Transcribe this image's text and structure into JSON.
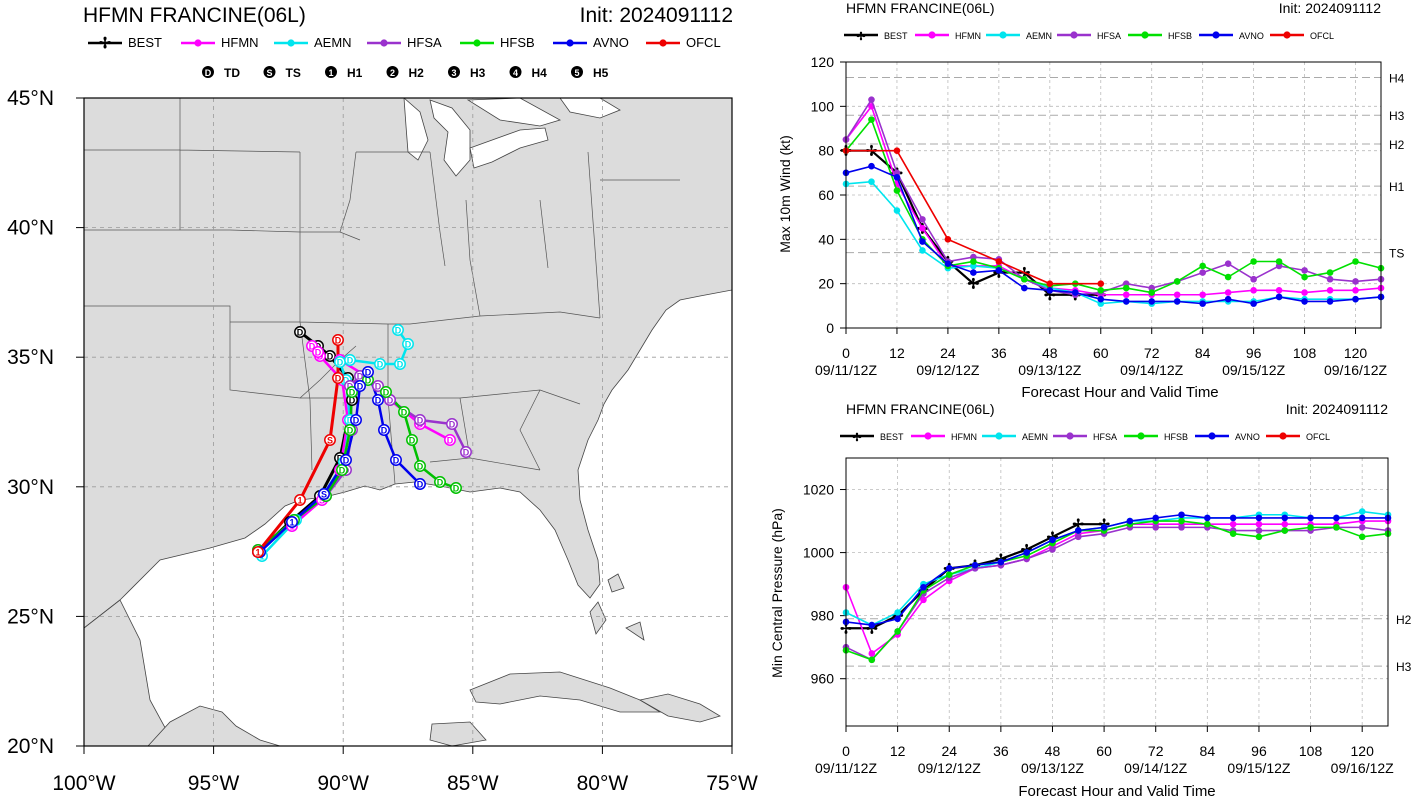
{
  "colors": {
    "BEST": "#000000",
    "HFMN": "#ff00ff",
    "AEMN": "#00e5ee",
    "HFSA": "#9a32cd",
    "HFSB": "#00e000",
    "AVNO": "#0000ee",
    "OFCL": "#ee0000",
    "land": "#dcdcdc",
    "water": "#ffffff",
    "grid": "#9a9a9a"
  },
  "track_panel": {
    "title": "HFMN FRANCINE(06L)",
    "init": "Init: 2024091112",
    "legend_models": [
      "BEST",
      "HFMN",
      "AEMN",
      "HFSA",
      "HFSB",
      "AVNO",
      "OFCL"
    ],
    "intensity_legend": [
      {
        "symbol": "D",
        "label": "TD"
      },
      {
        "symbol": "S",
        "label": "TS"
      },
      {
        "symbol": "1",
        "label": "H1"
      },
      {
        "symbol": "2",
        "label": "H2"
      },
      {
        "symbol": "3",
        "label": "H3"
      },
      {
        "symbol": "4",
        "label": "H4"
      },
      {
        "symbol": "5",
        "label": "H5"
      }
    ],
    "lat_ticks": [
      "45°N",
      "40°N",
      "35°N",
      "30°N",
      "25°N",
      "20°N"
    ],
    "lon_ticks": [
      "100°W",
      "95°W",
      "90°W",
      "85°W",
      "80°W",
      "75°W"
    ],
    "lat_values": [
      45,
      40,
      35,
      30,
      25,
      20
    ],
    "lon_values": [
      -100,
      -95,
      -90,
      -85,
      -80,
      -75
    ],
    "xlim": [
      -100,
      -75
    ],
    "ylim": [
      20,
      45
    ]
  },
  "chart_data": [
    {
      "type": "line",
      "title": "HFMN FRANCINE(06L)",
      "subtitle": "Init: 2024091112",
      "xlabel": "Forecast Hour and Valid Time",
      "ylabel": "Max 10m Wind (kt)",
      "xlim": [
        0,
        126
      ],
      "ylim": [
        0,
        120
      ],
      "x_ticks": [
        0,
        12,
        24,
        36,
        48,
        60,
        72,
        84,
        96,
        108,
        120
      ],
      "y_ticks": [
        0,
        20,
        40,
        60,
        80,
        100,
        120
      ],
      "date_labels": [
        {
          "hour": 0,
          "label": "09/11/12Z"
        },
        {
          "hour": 24,
          "label": "09/12/12Z"
        },
        {
          "hour": 48,
          "label": "09/13/12Z"
        },
        {
          "hour": 72,
          "label": "09/14/12Z"
        },
        {
          "hour": 96,
          "label": "09/15/12Z"
        },
        {
          "hour": 120,
          "label": "09/16/12Z"
        }
      ],
      "ref_lines": [
        {
          "y": 113,
          "label": "H4"
        },
        {
          "y": 96,
          "label": "H3"
        },
        {
          "y": 83,
          "label": "H2"
        },
        {
          "y": 64,
          "label": "H1"
        },
        {
          "y": 34,
          "label": "TS"
        }
      ],
      "series": [
        {
          "name": "BEST",
          "x": [
            0,
            6,
            12,
            18,
            24,
            30,
            36,
            42,
            48,
            54,
            60
          ],
          "y": [
            80,
            80,
            70,
            45,
            30,
            20,
            25,
            25,
            15,
            15,
            15
          ]
        },
        {
          "name": "HFMN",
          "x": [
            0,
            6,
            12,
            18,
            24,
            30,
            36,
            42,
            48,
            54,
            60,
            66,
            72,
            78,
            84,
            90,
            96,
            102,
            108,
            114,
            120,
            126
          ],
          "y": [
            85,
            100,
            65,
            45,
            28,
            28,
            28,
            22,
            18,
            17,
            15,
            15,
            15,
            15,
            15,
            16,
            17,
            17,
            16,
            17,
            17,
            18
          ]
        },
        {
          "name": "AEMN",
          "x": [
            0,
            6,
            12,
            18,
            24,
            30,
            36,
            42,
            48,
            54,
            60,
            66,
            72,
            78,
            84,
            90,
            96,
            102,
            108,
            114,
            120,
            126
          ],
          "y": [
            65,
            66,
            53,
            35,
            27,
            28,
            27,
            22,
            18,
            16,
            11,
            12,
            11,
            12,
            12,
            12,
            12,
            14,
            13,
            13,
            13,
            14
          ]
        },
        {
          "name": "HFSA",
          "x": [
            0,
            6,
            12,
            18,
            24,
            30,
            36,
            42,
            48,
            54,
            60,
            66,
            72,
            78,
            84,
            90,
            96,
            102,
            108,
            114,
            120,
            126
          ],
          "y": [
            85,
            103,
            70,
            49,
            30,
            32,
            31,
            22,
            17,
            15,
            16,
            20,
            18,
            21,
            25,
            29,
            22,
            28,
            26,
            22,
            21,
            22
          ]
        },
        {
          "name": "HFSB",
          "x": [
            0,
            6,
            12,
            18,
            24,
            30,
            36,
            42,
            48,
            54,
            60,
            66,
            72,
            78,
            84,
            90,
            96,
            102,
            108,
            114,
            120,
            126
          ],
          "y": [
            80,
            94,
            62,
            40,
            28,
            30,
            27,
            22,
            19,
            20,
            17,
            18,
            16,
            21,
            28,
            23,
            30,
            30,
            23,
            25,
            30,
            27
          ]
        },
        {
          "name": "AVNO",
          "x": [
            0,
            6,
            12,
            18,
            24,
            30,
            36,
            42,
            48,
            54,
            60,
            66,
            72,
            78,
            84,
            90,
            96,
            102,
            108,
            114,
            120,
            126
          ],
          "y": [
            70,
            73,
            68,
            39,
            29,
            25,
            26,
            18,
            17,
            16,
            13,
            12,
            12,
            12,
            11,
            13,
            11,
            14,
            12,
            12,
            13,
            14
          ]
        },
        {
          "name": "OFCL",
          "x": [
            0,
            12,
            24,
            36,
            48,
            60
          ],
          "y": [
            80,
            80,
            40,
            30,
            20,
            20
          ]
        }
      ]
    },
    {
      "type": "line",
      "title": "HFMN FRANCINE(06L)",
      "subtitle": "Init: 2024091112",
      "xlabel": "Forecast Hour and Valid Time",
      "ylabel": "Min Central Pressure (hPa)",
      "xlim": [
        0,
        126
      ],
      "ylim": [
        945,
        1030
      ],
      "x_ticks": [
        0,
        12,
        24,
        36,
        48,
        60,
        72,
        84,
        96,
        108,
        120
      ],
      "y_ticks": [
        960,
        980,
        1000,
        1020
      ],
      "date_labels": [
        {
          "hour": 0,
          "label": "09/11/12Z"
        },
        {
          "hour": 24,
          "label": "09/12/12Z"
        },
        {
          "hour": 48,
          "label": "09/13/12Z"
        },
        {
          "hour": 72,
          "label": "09/14/12Z"
        },
        {
          "hour": 96,
          "label": "09/15/12Z"
        },
        {
          "hour": 120,
          "label": "09/16/12Z"
        }
      ],
      "ref_lines": [
        {
          "y": 979,
          "label": "H2"
        },
        {
          "y": 964,
          "label": "H3"
        }
      ],
      "series": [
        {
          "name": "BEST",
          "x": [
            0,
            6,
            12,
            18,
            24,
            30,
            36,
            42,
            48,
            54,
            60
          ],
          "y": [
            976,
            976,
            980,
            988,
            995,
            996,
            998,
            1001,
            1005,
            1009,
            1009
          ]
        },
        {
          "name": "HFMN",
          "x": [
            0,
            6,
            12,
            18,
            24,
            30,
            36,
            42,
            48,
            54,
            60,
            66,
            72,
            78,
            84,
            90,
            96,
            102,
            108,
            114,
            120,
            126
          ],
          "y": [
            989,
            968,
            974,
            985,
            991,
            995,
            996,
            998,
            1002,
            1006,
            1007,
            1009,
            1009,
            1009,
            1009,
            1009,
            1009,
            1009,
            1009,
            1009,
            1010,
            1010
          ]
        },
        {
          "name": "AEMN",
          "x": [
            0,
            6,
            12,
            18,
            24,
            30,
            36,
            42,
            48,
            54,
            60,
            66,
            72,
            78,
            84,
            90,
            96,
            102,
            108,
            114,
            120,
            126
          ],
          "y": [
            981,
            977,
            981,
            990,
            993,
            995,
            997,
            1000,
            1004,
            1007,
            1008,
            1010,
            1010,
            1011,
            1011,
            1011,
            1012,
            1012,
            1011,
            1011,
            1013,
            1012
          ]
        },
        {
          "name": "HFSA",
          "x": [
            0,
            6,
            12,
            18,
            24,
            30,
            36,
            42,
            48,
            54,
            60,
            66,
            72,
            78,
            84,
            90,
            96,
            102,
            108,
            114,
            120,
            126
          ],
          "y": [
            970,
            966,
            975,
            987,
            992,
            995,
            996,
            998,
            1001,
            1005,
            1006,
            1008,
            1008,
            1008,
            1008,
            1007,
            1007,
            1007,
            1007,
            1008,
            1008,
            1007
          ]
        },
        {
          "name": "HFSB",
          "x": [
            0,
            6,
            12,
            18,
            24,
            30,
            36,
            42,
            48,
            54,
            60,
            66,
            72,
            78,
            84,
            90,
            96,
            102,
            108,
            114,
            120,
            126
          ],
          "y": [
            969,
            966,
            975,
            988,
            993,
            996,
            997,
            999,
            1003,
            1007,
            1007,
            1009,
            1010,
            1010,
            1009,
            1006,
            1005,
            1007,
            1008,
            1008,
            1005,
            1006
          ]
        },
        {
          "name": "AVNO",
          "x": [
            0,
            6,
            12,
            18,
            24,
            30,
            36,
            42,
            48,
            54,
            60,
            66,
            72,
            78,
            84,
            90,
            96,
            102,
            108,
            114,
            120,
            126
          ],
          "y": [
            978,
            977,
            979,
            989,
            995,
            996,
            997,
            1000,
            1004,
            1007,
            1008,
            1010,
            1011,
            1012,
            1011,
            1011,
            1011,
            1011,
            1011,
            1011,
            1011,
            1011
          ]
        }
      ]
    }
  ]
}
